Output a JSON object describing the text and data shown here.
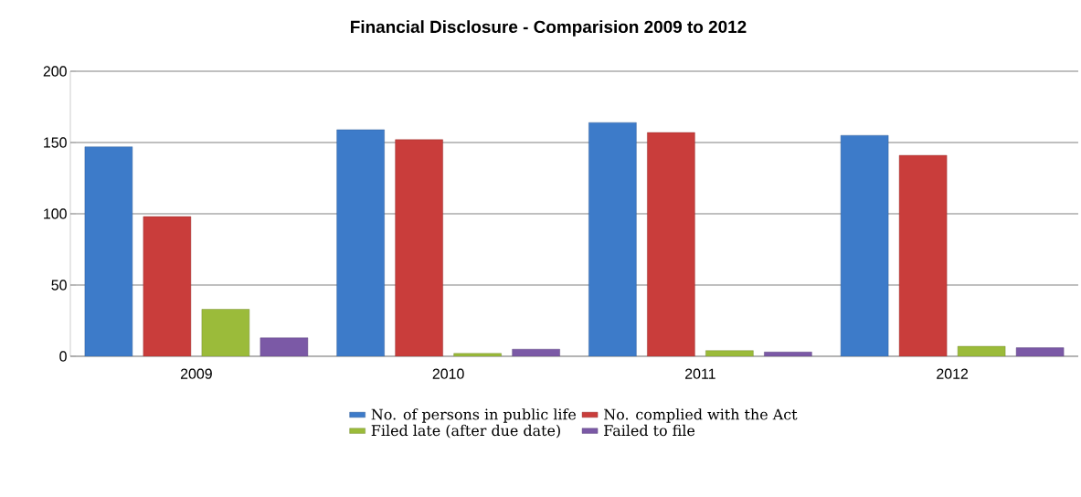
{
  "chart_data": {
    "type": "bar",
    "title": "Financial Disclosure - Comparision 2009 to 2012",
    "categories": [
      "2009",
      "2010",
      "2011",
      "2012"
    ],
    "series": [
      {
        "name": "No. of persons in public life",
        "color": "#3d7bc9",
        "values": [
          147,
          159,
          164,
          155
        ]
      },
      {
        "name": "No. complied with the Act",
        "color": "#c93d3b",
        "values": [
          98,
          152,
          157,
          141
        ]
      },
      {
        "name": "Filed late (after due date)",
        "color": "#9bbb3a",
        "values": [
          33,
          2,
          4,
          7
        ]
      },
      {
        "name": "Failed to file",
        "color": "#7b59a6",
        "values": [
          13,
          5,
          3,
          6
        ]
      }
    ],
    "ylim": [
      0,
      200
    ],
    "yticks": [
      0,
      50,
      100,
      150,
      200
    ],
    "grid": "y",
    "legend": "bottom"
  }
}
